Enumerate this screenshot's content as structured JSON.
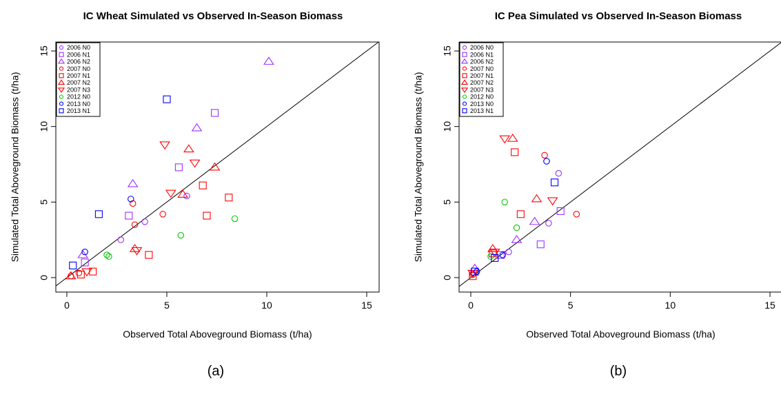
{
  "chart_data": [
    {
      "type": "scatter",
      "title": "IC Wheat Simulated vs Observed In-Season Biomass",
      "xlabel": "Observed Total Aboveground Biomass (t/ha)",
      "ylabel": "Simulated Total Aboveground Biomass (t/ha)",
      "xlim": [
        0,
        15
      ],
      "ylim": [
        0,
        15
      ],
      "xticks": [
        "0",
        "5",
        "10",
        "15"
      ],
      "yticks": [
        "0",
        "5",
        "10",
        "15"
      ],
      "panel_label": "(a)",
      "reference_line": "1:1",
      "legend_position": "top-left",
      "series": [
        {
          "name": "2006 N0",
          "marker": "circle",
          "color": "#9B30FF",
          "points": [
            [
              2.7,
              2.5
            ],
            [
              3.9,
              3.7
            ],
            [
              6.0,
              5.4
            ]
          ]
        },
        {
          "name": "2006 N1",
          "marker": "square",
          "color": "#9B30FF",
          "points": [
            [
              0.9,
              1.0
            ],
            [
              3.1,
              4.1
            ],
            [
              5.6,
              7.3
            ],
            [
              7.4,
              10.9
            ]
          ]
        },
        {
          "name": "2006 N2",
          "marker": "triangle-up",
          "color": "#9B30FF",
          "points": [
            [
              0.8,
              1.5
            ],
            [
              3.3,
              6.2
            ],
            [
              6.5,
              9.9
            ],
            [
              10.1,
              14.3
            ]
          ]
        },
        {
          "name": "2007 N0",
          "marker": "circle",
          "color": "#FF0000",
          "points": [
            [
              0.2,
              0.1
            ],
            [
              0.6,
              0.3
            ],
            [
              3.3,
              4.9
            ],
            [
              3.4,
              3.5
            ],
            [
              4.8,
              4.2
            ]
          ]
        },
        {
          "name": "2007 N1",
          "marker": "square",
          "color": "#FF0000",
          "points": [
            [
              0.7,
              0.2
            ],
            [
              1.3,
              0.4
            ],
            [
              4.1,
              1.5
            ],
            [
              6.8,
              6.1
            ],
            [
              7.0,
              4.1
            ],
            [
              8.1,
              5.3
            ]
          ]
        },
        {
          "name": "2007 N2",
          "marker": "triangle-up",
          "color": "#FF0000",
          "points": [
            [
              0.2,
              0.1
            ],
            [
              3.4,
              1.9
            ],
            [
              5.8,
              5.5
            ],
            [
              6.1,
              8.5
            ],
            [
              7.4,
              7.3
            ]
          ]
        },
        {
          "name": "2007 N3",
          "marker": "triangle-down",
          "color": "#FF0000",
          "points": [
            [
              1.0,
              0.4
            ],
            [
              3.5,
              1.8
            ],
            [
              4.9,
              8.8
            ],
            [
              5.2,
              5.6
            ],
            [
              6.4,
              7.6
            ]
          ]
        },
        {
          "name": "2012 N0",
          "marker": "circle",
          "color": "#00CC00",
          "points": [
            [
              2.1,
              1.4
            ],
            [
              2.0,
              1.5
            ],
            [
              5.7,
              2.8
            ],
            [
              8.4,
              3.9
            ]
          ]
        },
        {
          "name": "2013 N0",
          "marker": "circle",
          "color": "#0000FF",
          "points": [
            [
              0.9,
              1.7
            ],
            [
              3.2,
              5.2
            ]
          ]
        },
        {
          "name": "2013 N1",
          "marker": "square",
          "color": "#0000FF",
          "points": [
            [
              0.3,
              0.8
            ],
            [
              1.6,
              4.2
            ],
            [
              5.0,
              11.8
            ]
          ]
        }
      ]
    },
    {
      "type": "scatter",
      "title": "IC Pea Simulated vs Observed In-Season Biomass",
      "xlabel": "Observed Total Aboveground Biomass (t/ha)",
      "ylabel": "Simulated Total Aboveground Biomass (t/ha)",
      "xlim": [
        0,
        15
      ],
      "ylim": [
        0,
        15
      ],
      "xticks": [
        "0",
        "5",
        "10",
        "15"
      ],
      "yticks": [
        "0",
        "5",
        "10",
        "15"
      ],
      "panel_label": "(b)",
      "reference_line": "1:1",
      "legend_position": "top-left",
      "series": [
        {
          "name": "2006 N0",
          "marker": "circle",
          "color": "#9B30FF",
          "points": [
            [
              1.9,
              1.7
            ],
            [
              3.9,
              3.6
            ],
            [
              4.4,
              6.9
            ]
          ]
        },
        {
          "name": "2006 N1",
          "marker": "square",
          "color": "#9B30FF",
          "points": [
            [
              1.5,
              1.5
            ],
            [
              3.5,
              2.2
            ],
            [
              4.5,
              4.4
            ]
          ]
        },
        {
          "name": "2006 N2",
          "marker": "triangle-up",
          "color": "#9B30FF",
          "points": [
            [
              0.2,
              0.6
            ],
            [
              2.3,
              2.5
            ],
            [
              3.2,
              3.7
            ]
          ]
        },
        {
          "name": "2007 N0",
          "marker": "circle",
          "color": "#FF0000",
          "points": [
            [
              0.1,
              0.2
            ],
            [
              3.7,
              8.1
            ],
            [
              5.3,
              4.2
            ]
          ]
        },
        {
          "name": "2007 N1",
          "marker": "square",
          "color": "#FF0000",
          "points": [
            [
              0.1,
              0.1
            ],
            [
              1.1,
              1.6
            ],
            [
              2.2,
              8.3
            ],
            [
              2.5,
              4.2
            ]
          ]
        },
        {
          "name": "2007 N2",
          "marker": "triangle-up",
          "color": "#FF0000",
          "points": [
            [
              1.1,
              1.9
            ],
            [
              2.1,
              9.2
            ],
            [
              3.3,
              5.2
            ]
          ]
        },
        {
          "name": "2007 N3",
          "marker": "triangle-down",
          "color": "#FF0000",
          "points": [
            [
              0.1,
              0.3
            ],
            [
              1.2,
              1.7
            ],
            [
              1.7,
              9.2
            ],
            [
              4.1,
              5.1
            ]
          ]
        },
        {
          "name": "2012 N0",
          "marker": "circle",
          "color": "#00CC00",
          "points": [
            [
              1.0,
              1.4
            ],
            [
              1.7,
              5.0
            ],
            [
              2.3,
              3.3
            ]
          ]
        },
        {
          "name": "2013 N0",
          "marker": "circle",
          "color": "#0000FF",
          "points": [
            [
              0.3,
              0.4
            ],
            [
              1.6,
              1.5
            ],
            [
              3.8,
              7.7
            ]
          ]
        },
        {
          "name": "2013 N1",
          "marker": "square",
          "color": "#0000FF",
          "points": [
            [
              0.2,
              0.4
            ],
            [
              1.2,
              1.3
            ],
            [
              4.2,
              6.3
            ]
          ]
        }
      ]
    }
  ]
}
